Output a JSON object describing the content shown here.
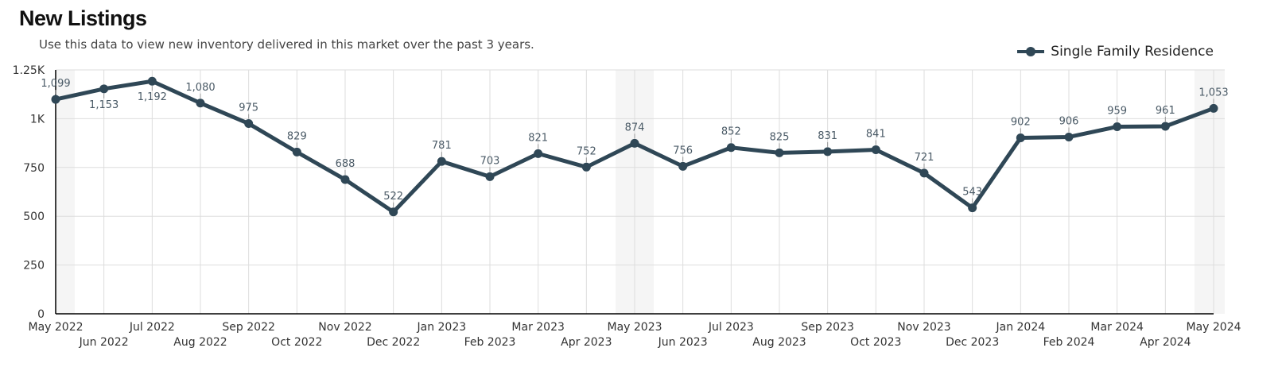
{
  "header": {
    "title": "New Listings",
    "subtitle": "Use this data to view new inventory delivered in this market over the past 3 years."
  },
  "colors": {
    "line": "#2f4756",
    "grid": "#dddddd",
    "band": "#f5f5f5",
    "axis": "#000000"
  },
  "chart_data": {
    "type": "line",
    "categories": [
      "May 2022",
      "Jun 2022",
      "Jul 2022",
      "Aug 2022",
      "Sep 2022",
      "Oct 2022",
      "Nov 2022",
      "Dec 2022",
      "Jan 2023",
      "Feb 2023",
      "Mar 2023",
      "Apr 2023",
      "May 2023",
      "Jun 2023",
      "Jul 2023",
      "Aug 2023",
      "Sep 2023",
      "Oct 2023",
      "Nov 2023",
      "Dec 2023",
      "Jan 2024",
      "Feb 2024",
      "Mar 2024",
      "Apr 2024",
      "May 2024"
    ],
    "series": [
      {
        "name": "Single Family Residence",
        "values": [
          1099,
          1153,
          1192,
          1080,
          975,
          829,
          688,
          522,
          781,
          703,
          821,
          752,
          874,
          756,
          852,
          825,
          831,
          841,
          721,
          543,
          902,
          906,
          959,
          961,
          1053
        ],
        "labels": [
          "1,099",
          "1,153",
          "1,192",
          "1,080",
          "975",
          "829",
          "688",
          "522",
          "781",
          "703",
          "821",
          "752",
          "874",
          "756",
          "852",
          "825",
          "831",
          "841",
          "721",
          "543",
          "902",
          "906",
          "959",
          "961",
          "1,053"
        ]
      }
    ],
    "ylim": [
      0,
      1250
    ],
    "yticks": [
      0,
      250,
      500,
      750,
      1000,
      1250
    ],
    "ytick_labels": [
      "0",
      "250",
      "500",
      "750",
      "1K",
      "1.25K"
    ],
    "xlabel": "",
    "ylabel": "",
    "grid": true,
    "legend": "top-right",
    "highlight_months": [
      "May 2022",
      "May 2023",
      "May 2024"
    ]
  }
}
